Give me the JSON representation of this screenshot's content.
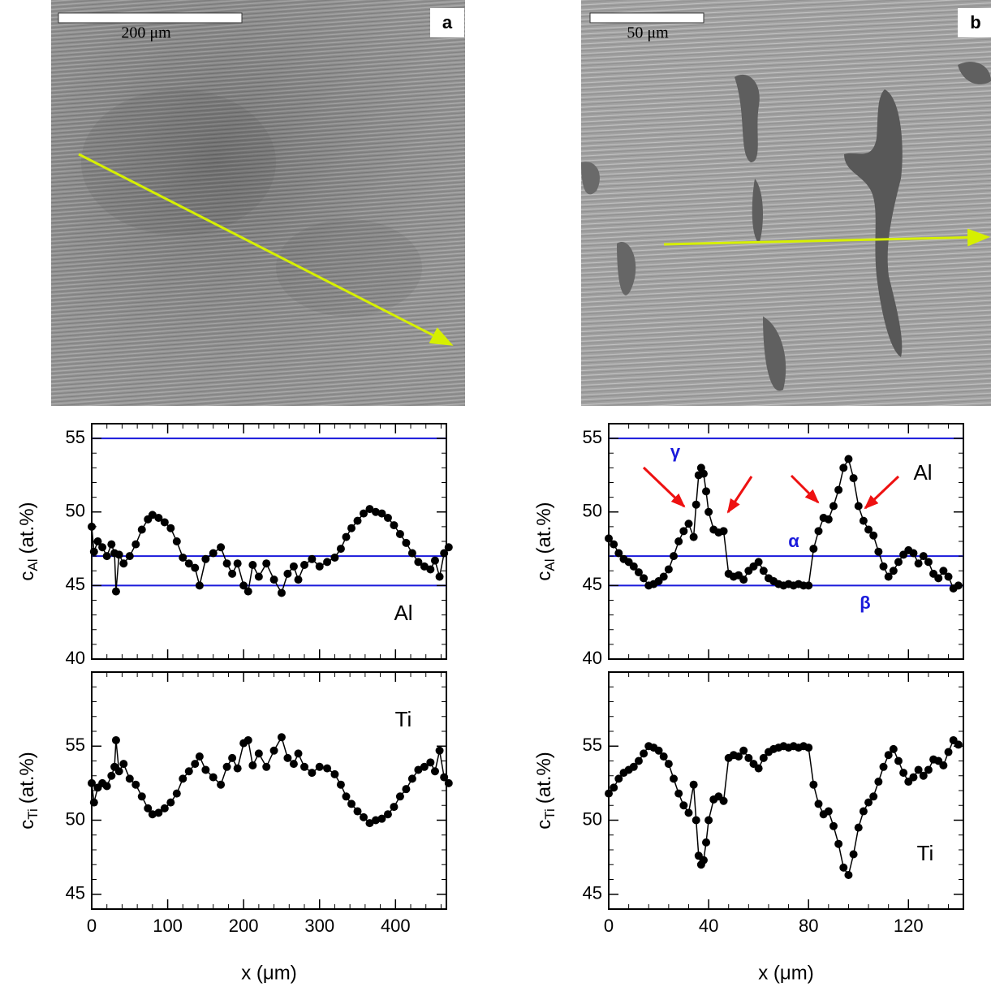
{
  "panels": [
    {
      "label": "a",
      "scale_bar": "200 μm"
    },
    {
      "label": "b",
      "scale_bar": "50 μm"
    }
  ],
  "chart_data": [
    {
      "type": "line",
      "xlim": [
        0,
        467
      ],
      "ylim": [
        40,
        56
      ],
      "xticks": [
        0,
        100,
        200,
        300,
        400
      ],
      "yticks": [
        40,
        45,
        50,
        55
      ],
      "ylabel": {
        "main": "c",
        "sub": "Al",
        "unit": "(at.%)"
      },
      "hlines": [
        55,
        47,
        45
      ],
      "hline_color": "#1a1adb",
      "annotations": [
        "Al"
      ],
      "x": [
        0,
        3,
        8,
        14,
        20,
        26,
        30,
        32,
        36,
        42,
        50,
        58,
        66,
        74,
        80,
        88,
        96,
        104,
        112,
        120,
        128,
        136,
        142,
        150,
        160,
        170,
        178,
        185,
        192,
        200,
        206,
        212,
        220,
        230,
        240,
        250,
        258,
        266,
        272,
        280,
        290,
        300,
        310,
        320,
        328,
        335,
        342,
        350,
        358,
        366,
        374,
        382,
        390,
        398,
        406,
        414,
        422,
        430,
        438,
        446,
        452,
        458,
        464,
        470
      ],
      "series": [
        {
          "name": "Al",
          "color": "#000000",
          "values": [
            49,
            47.3,
            48,
            47.6,
            47,
            47.8,
            47.2,
            44.6,
            47.1,
            46.5,
            47,
            47.8,
            48.8,
            49.5,
            49.8,
            49.6,
            49.3,
            48.9,
            48,
            46.9,
            46.5,
            46.2,
            45,
            46.8,
            47.2,
            47.6,
            46.5,
            45.8,
            46.5,
            45,
            44.6,
            46.4,
            45.6,
            46.5,
            45.4,
            44.5,
            45.8,
            46.3,
            45.4,
            46.4,
            46.8,
            46.3,
            46.6,
            46.9,
            47.5,
            48.3,
            48.9,
            49.4,
            49.9,
            50.2,
            50,
            49.9,
            49.6,
            49.1,
            48.5,
            47.9,
            47.2,
            46.6,
            46.3,
            46.1,
            46.7,
            45.6,
            47.2,
            47.6
          ]
        }
      ]
    },
    {
      "type": "line",
      "xlim": [
        0,
        467
      ],
      "ylim": [
        44,
        60
      ],
      "xticks": [
        0,
        100,
        200,
        300,
        400
      ],
      "yticks": [
        45,
        50,
        55
      ],
      "xlabel": "x (μm)",
      "ylabel": {
        "main": "c",
        "sub": "Ti",
        "unit": "(at.%)"
      },
      "annotations": [
        "Ti"
      ],
      "x": [
        0,
        3,
        8,
        14,
        20,
        26,
        30,
        32,
        36,
        42,
        50,
        58,
        66,
        74,
        80,
        88,
        96,
        104,
        112,
        120,
        128,
        136,
        142,
        150,
        160,
        170,
        178,
        185,
        192,
        200,
        206,
        212,
        220,
        230,
        240,
        250,
        258,
        266,
        272,
        280,
        290,
        300,
        310,
        320,
        328,
        335,
        342,
        350,
        358,
        366,
        374,
        382,
        390,
        398,
        406,
        414,
        422,
        430,
        438,
        446,
        452,
        458,
        464,
        470
      ],
      "series": [
        {
          "name": "Ti",
          "color": "#000000",
          "values": [
            52.5,
            51.2,
            52.2,
            52.5,
            52.3,
            53,
            53.6,
            55.4,
            53.3,
            53.8,
            52.8,
            52.4,
            51.6,
            50.8,
            50.4,
            50.5,
            50.8,
            51.2,
            51.8,
            52.8,
            53.3,
            53.8,
            54.3,
            53.4,
            52.9,
            52.4,
            53.6,
            54.2,
            53.5,
            55.2,
            55.4,
            53.7,
            54.5,
            53.6,
            54.7,
            55.6,
            54.2,
            53.8,
            54.5,
            53.6,
            53.2,
            53.6,
            53.5,
            53.1,
            52.4,
            51.6,
            51.1,
            50.6,
            50.2,
            49.8,
            50,
            50.1,
            50.4,
            50.9,
            51.6,
            52.1,
            52.8,
            53.4,
            53.6,
            53.9,
            53.3,
            54.7,
            52.9,
            52.5
          ]
        }
      ]
    },
    {
      "type": "line",
      "xlim": [
        0,
        142
      ],
      "ylim": [
        40,
        56
      ],
      "xticks": [
        0,
        40,
        80,
        120
      ],
      "yticks": [
        40,
        45,
        50,
        55
      ],
      "ylabel": {
        "main": "c",
        "sub": "Al",
        "unit": "(at.%)"
      },
      "hlines": [
        55,
        47,
        45
      ],
      "hline_color": "#1a1adb",
      "annotations": [
        "γ",
        "α",
        "β",
        "Al"
      ],
      "x": [
        0,
        2,
        4,
        6,
        8,
        10,
        12,
        14,
        16,
        18,
        20,
        22,
        24,
        26,
        28,
        30,
        32,
        34,
        35,
        36,
        37,
        38,
        39,
        40,
        42,
        44,
        46,
        48,
        50,
        52,
        54,
        56,
        58,
        60,
        62,
        64,
        66,
        68,
        70,
        72,
        74,
        76,
        78,
        80,
        82,
        84,
        86,
        88,
        90,
        92,
        94,
        96,
        98,
        100,
        102,
        104,
        106,
        108,
        110,
        112,
        114,
        116,
        118,
        120,
        122,
        124,
        126,
        128,
        130,
        132,
        134,
        136,
        138,
        140
      ],
      "series": [
        {
          "name": "Al",
          "color": "#000000",
          "values": [
            48.2,
            47.8,
            47.2,
            46.8,
            46.6,
            46.3,
            45.9,
            45.5,
            45,
            45.1,
            45.3,
            45.6,
            46.1,
            47,
            48,
            48.7,
            49.2,
            48.3,
            50.5,
            52.5,
            53,
            52.6,
            51.4,
            50,
            48.8,
            48.6,
            48.7,
            45.8,
            45.6,
            45.7,
            45.4,
            46,
            46.3,
            46.6,
            46,
            45.5,
            45.3,
            45.1,
            45,
            45.1,
            45,
            45.1,
            45,
            45,
            47.5,
            48.7,
            49.6,
            49.5,
            50.4,
            51.5,
            53,
            53.6,
            52.3,
            50.4,
            49.4,
            48.8,
            48.4,
            47.3,
            46.3,
            45.6,
            46,
            46.6,
            47.1,
            47.4,
            47.2,
            46.5,
            47,
            46.6,
            45.8,
            45.5,
            46,
            45.6,
            44.8,
            45
          ]
        }
      ]
    },
    {
      "type": "line",
      "xlim": [
        0,
        142
      ],
      "ylim": [
        44,
        60
      ],
      "xticks": [
        0,
        40,
        80,
        120
      ],
      "yticks": [
        45,
        50,
        55
      ],
      "xlabel": "x (μm)",
      "ylabel": {
        "main": "c",
        "sub": "Ti",
        "unit": "(at.%)"
      },
      "annotations": [
        "Ti"
      ],
      "x": [
        0,
        2,
        4,
        6,
        8,
        10,
        12,
        14,
        16,
        18,
        20,
        22,
        24,
        26,
        28,
        30,
        32,
        34,
        35,
        36,
        37,
        38,
        39,
        40,
        42,
        44,
        46,
        48,
        50,
        52,
        54,
        56,
        58,
        60,
        62,
        64,
        66,
        68,
        70,
        72,
        74,
        76,
        78,
        80,
        82,
        84,
        86,
        88,
        90,
        92,
        94,
        96,
        98,
        100,
        102,
        104,
        106,
        108,
        110,
        112,
        114,
        116,
        118,
        120,
        122,
        124,
        126,
        128,
        130,
        132,
        134,
        136,
        138,
        140
      ],
      "series": [
        {
          "name": "Ti",
          "color": "#000000",
          "values": [
            51.8,
            52.2,
            52.8,
            53.2,
            53.4,
            53.6,
            54,
            54.5,
            55,
            54.9,
            54.7,
            54.3,
            53.8,
            52.8,
            51.8,
            51,
            50.5,
            52.4,
            50,
            47.6,
            47,
            47.3,
            48.5,
            50,
            51.4,
            51.6,
            51.3,
            54.2,
            54.4,
            54.3,
            54.7,
            54.2,
            53.8,
            53.5,
            54.2,
            54.6,
            54.8,
            54.9,
            55,
            54.9,
            55,
            54.9,
            55,
            54.9,
            52.4,
            51.1,
            50.4,
            50.6,
            49.6,
            48.4,
            46.8,
            46.3,
            47.7,
            49.5,
            50.6,
            51.2,
            51.6,
            52.6,
            53.6,
            54.4,
            54.8,
            54,
            53.2,
            52.6,
            52.9,
            53.4,
            53,
            53.4,
            54.1,
            54,
            53.7,
            54.6,
            55.4,
            55.1
          ]
        }
      ]
    }
  ]
}
